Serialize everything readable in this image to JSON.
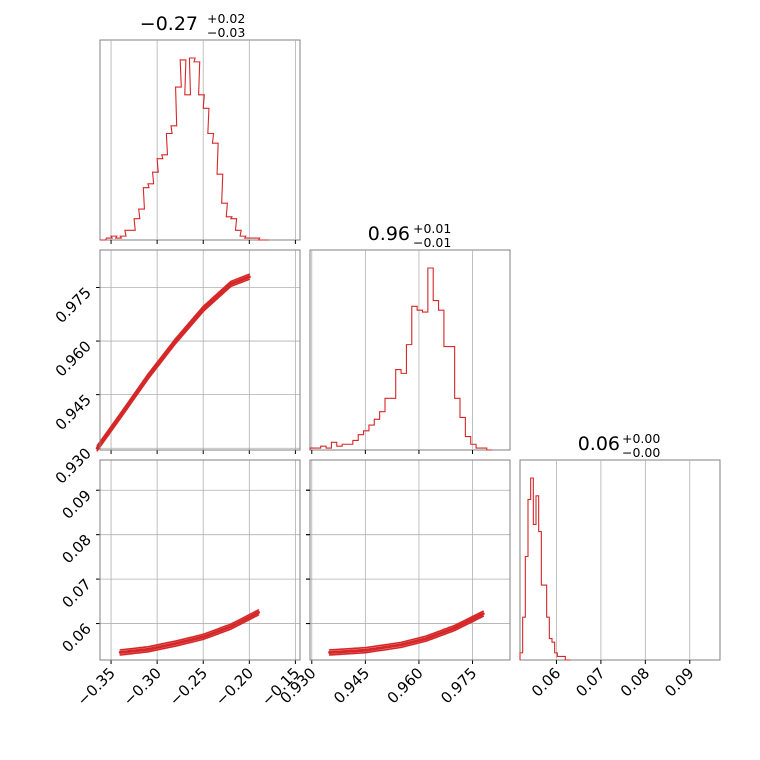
{
  "chart_data": {
    "type": "corner",
    "color": "#d62728",
    "parameters": [
      {
        "title": {
          "main": "0.27",
          "sign": "−",
          "upper": "+0.02",
          "lower": "−0.03"
        },
        "ticks": [
          "−0.35",
          "−0.30",
          "−0.25",
          "−0.20",
          "−0.15"
        ],
        "tick_values": [
          -0.35,
          -0.3,
          -0.25,
          -0.2,
          -0.15
        ],
        "range": [
          -0.362,
          -0.145
        ],
        "histogram": {
          "bin_width": 0.0062,
          "bins_start": [
            -0.362,
            -0.355,
            -0.35,
            -0.345,
            -0.34,
            -0.335,
            -0.33,
            -0.325,
            -0.32,
            -0.315,
            -0.31,
            -0.305,
            -0.3,
            -0.295,
            -0.29,
            -0.285,
            -0.28,
            -0.275,
            -0.27,
            -0.265,
            -0.26,
            -0.255,
            -0.25,
            -0.245,
            -0.24,
            -0.235,
            -0.23,
            -0.225,
            -0.22,
            -0.215,
            -0.21,
            -0.205,
            -0.2,
            -0.195,
            -0.19,
            -0.185
          ],
          "counts": [
            0,
            1,
            2,
            1,
            2,
            5,
            5,
            11,
            16,
            27,
            29,
            35,
            42,
            44,
            55,
            59,
            79,
            93,
            75,
            94,
            92,
            75,
            68,
            55,
            50,
            34,
            19,
            12,
            11,
            5,
            2,
            1,
            1,
            1,
            0,
            0
          ]
        }
      },
      {
        "title": {
          "main": "0.96",
          "sign": "",
          "upper": "+0.01",
          "lower": "−0.01"
        },
        "ticks": [
          "0.930",
          "0.945",
          "0.960",
          "0.975"
        ],
        "tick_values": [
          0.93,
          0.945,
          0.96,
          0.975
        ],
        "range": [
          0.9295,
          0.9855
        ],
        "histogram": {
          "bin_width": 0.0015,
          "bins_start": [
            0.9295,
            0.931,
            0.9325,
            0.934,
            0.9355,
            0.937,
            0.9385,
            0.94,
            0.9415,
            0.943,
            0.9445,
            0.946,
            0.9475,
            0.949,
            0.9505,
            0.952,
            0.9535,
            0.955,
            0.9565,
            0.958,
            0.9595,
            0.961,
            0.9625,
            0.964,
            0.9655,
            0.967,
            0.9685,
            0.97,
            0.9715,
            0.973,
            0.9745,
            0.976,
            0.9775,
            0.979
          ],
          "counts": [
            1,
            1,
            2,
            1,
            4,
            2,
            3,
            3,
            5,
            8,
            10,
            13,
            16,
            20,
            27,
            27,
            42,
            40,
            55,
            75,
            73,
            72,
            95,
            78,
            73,
            54,
            54,
            27,
            17,
            7,
            3,
            1,
            1,
            0
          ]
        }
      },
      {
        "title": {
          "main": "0.06",
          "sign": "",
          "upper": "+0.00",
          "lower": "−0.00"
        },
        "ticks": [
          "0.06",
          "0.07",
          "0.08",
          "0.09"
        ],
        "tick_values": [
          0.06,
          0.07,
          0.08,
          0.09
        ],
        "range": [
          0.0518,
          0.0968
        ],
        "histogram": {
          "bin_width": 0.0006,
          "bins_start": [
            0.0518,
            0.0524,
            0.053,
            0.0536,
            0.0542,
            0.0548,
            0.0554,
            0.056,
            0.0566,
            0.0572,
            0.0578,
            0.0584,
            0.059,
            0.0596,
            0.0602,
            0.0608,
            0.0614,
            0.062,
            0.0626
          ],
          "counts": [
            2,
            12,
            29,
            45,
            51,
            38,
            46,
            36,
            21,
            21,
            12,
            6,
            5,
            2,
            1,
            1,
            1,
            0,
            0
          ]
        }
      }
    ],
    "ylabel_ticks": {
      "row1": [
        "0.930",
        "0.945",
        "0.960",
        "0.975"
      ],
      "row2": [
        "0.06",
        "0.07",
        "0.08",
        "0.09"
      ]
    },
    "joint_ridge": {
      "p1_vs_p0": {
        "x": [
          -0.365,
          -0.34,
          -0.31,
          -0.28,
          -0.25,
          -0.22,
          -0.2
        ],
        "y": [
          0.93,
          0.939,
          0.95,
          0.96,
          0.969,
          0.976,
          0.978
        ]
      },
      "p2_vs_p0": {
        "x": [
          -0.34,
          -0.31,
          -0.28,
          -0.25,
          -0.22,
          -0.19
        ],
        "y": [
          0.0535,
          0.0542,
          0.0555,
          0.057,
          0.0593,
          0.0625
        ]
      },
      "p2_vs_p1": {
        "x": [
          0.935,
          0.945,
          0.955,
          0.962,
          0.97,
          0.978
        ],
        "y": [
          0.0535,
          0.054,
          0.0552,
          0.0566,
          0.059,
          0.0622
        ]
      }
    }
  }
}
